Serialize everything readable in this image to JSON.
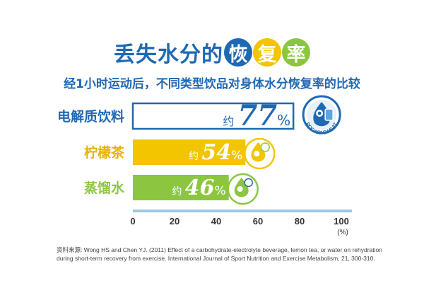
{
  "title": {
    "plain": "丢失水分的",
    "highlight": [
      {
        "char": "恢",
        "color": "#1f68b3"
      },
      {
        "char": "复",
        "color": "#f2c500"
      },
      {
        "char": "率",
        "color": "#8cc640"
      }
    ]
  },
  "subtitle": "经1小时运动后，不同类型饮品对身体水分恢复率的比较",
  "chart_data": {
    "type": "bar",
    "orientation": "horizontal",
    "categories": [
      "电解质饮料",
      "柠檬茶",
      "蒸馏水"
    ],
    "values": [
      77,
      54,
      46
    ],
    "data_labels": [
      {
        "prefix": "约",
        "value": "77",
        "unit": "%"
      },
      {
        "prefix": "约",
        "value": "54",
        "unit": "%"
      },
      {
        "prefix": "约",
        "value": "46",
        "unit": "%"
      }
    ],
    "colors": [
      "#ffffff",
      "#f2c500",
      "#8cc640"
    ],
    "label_colors": [
      "#1f68b3",
      "#e5b400",
      "#8cc640"
    ],
    "xlim": [
      0,
      100
    ],
    "xticks": [
      "0",
      "20",
      "40",
      "60",
      "80",
      "100"
    ],
    "x_unit": "(%)",
    "axis_color": "#9cc6e4",
    "icon_names": [
      "pocari-sweat-drop-icon",
      "lemon-tea-drop-icon",
      "distilled-water-drop-icon"
    ],
    "brand_text": "POCARI SWEAT"
  },
  "source_text": "资料来源: Wong HS and Chen YJ. (2011) Effect of a carbohydrate-electrolyte beverage, lemon tea, or water on rehydration during short-term recovery from exercise. International Journal of Sport Nutrition and Exercise Metabolism, 21, 300-310."
}
